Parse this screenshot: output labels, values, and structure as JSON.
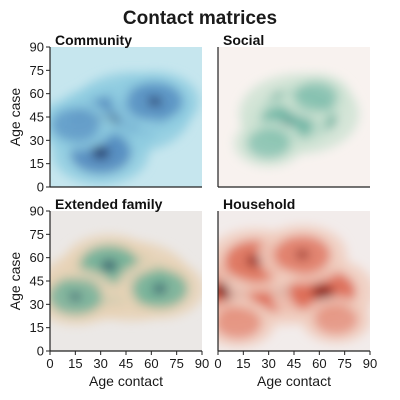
{
  "title": "Contact matrices",
  "chart_data": [
    {
      "type": "heatmap",
      "panel": "Community",
      "xlabel": "",
      "ylabel": "Age case",
      "xlim": [
        0,
        90
      ],
      "ylim": [
        0,
        90
      ],
      "xticks": [
        "0",
        "15",
        "30",
        "45",
        "60",
        "75",
        "90"
      ],
      "yticks": [
        "0",
        "15",
        "30",
        "45",
        "60",
        "75",
        "90"
      ],
      "colors": {
        "background": "#c6e6ee",
        "low": "#8fcde0",
        "mid": "#3e74b4",
        "high": "#141a48"
      },
      "density_peaks": [
        {
          "x": 48,
          "y": 48,
          "weight": 1.0
        },
        {
          "x": 33,
          "y": 42,
          "weight": 0.85
        },
        {
          "x": 30,
          "y": 22,
          "weight": 0.7
        },
        {
          "x": 62,
          "y": 55,
          "weight": 0.6
        },
        {
          "x": 15,
          "y": 40,
          "weight": 0.45
        }
      ]
    },
    {
      "type": "heatmap",
      "panel": "Social",
      "xlabel": "",
      "ylabel": "",
      "xlim": [
        0,
        90
      ],
      "ylim": [
        0,
        90
      ],
      "xticks": [
        "0",
        "15",
        "30",
        "45",
        "60",
        "75",
        "90"
      ],
      "yticks": [
        "0",
        "15",
        "30",
        "45",
        "60",
        "75",
        "90"
      ],
      "colors": {
        "background": "#f8f2ef",
        "low": "#cfe3d3",
        "mid": "#3da08c",
        "high": "#114d57"
      },
      "density_peaks": [
        {
          "x": 48,
          "y": 47,
          "weight": 1.0
        },
        {
          "x": 40,
          "y": 40,
          "weight": 0.55
        },
        {
          "x": 30,
          "y": 28,
          "weight": 0.35
        },
        {
          "x": 58,
          "y": 58,
          "weight": 0.35
        }
      ]
    },
    {
      "type": "heatmap",
      "panel": "Extended family",
      "xlabel": "Age contact",
      "ylabel": "Age case",
      "xlim": [
        0,
        90
      ],
      "ylim": [
        0,
        90
      ],
      "xticks": [
        "0",
        "15",
        "30",
        "45",
        "60",
        "75",
        "90"
      ],
      "yticks": [
        "0",
        "15",
        "30",
        "45",
        "60",
        "75",
        "90"
      ],
      "colors": {
        "background": "#ebe8e6",
        "low": "#e8d2b6",
        "mid": "#3ea38c",
        "high": "#16365b"
      },
      "density_peaks": [
        {
          "x": 48,
          "y": 45,
          "weight": 1.0
        },
        {
          "x": 25,
          "y": 42,
          "weight": 0.8
        },
        {
          "x": 35,
          "y": 55,
          "weight": 0.65
        },
        {
          "x": 65,
          "y": 40,
          "weight": 0.6
        },
        {
          "x": 15,
          "y": 35,
          "weight": 0.55
        }
      ]
    },
    {
      "type": "heatmap",
      "panel": "Household",
      "xlabel": "Age contact",
      "ylabel": "",
      "xlim": [
        0,
        90
      ],
      "ylim": [
        0,
        90
      ],
      "xticks": [
        "0",
        "15",
        "30",
        "45",
        "60",
        "75",
        "90"
      ],
      "yticks": [
        "0",
        "15",
        "30",
        "45",
        "60",
        "75",
        "90"
      ],
      "colors": {
        "background": "#f2eceb",
        "low": "#f0cdbe",
        "mid": "#d9543c",
        "high": "#7a1410"
      },
      "density_peaks": [
        {
          "x": 8,
          "y": 40,
          "weight": 1.0
        },
        {
          "x": 38,
          "y": 40,
          "weight": 0.85
        },
        {
          "x": 62,
          "y": 38,
          "weight": 0.8
        },
        {
          "x": 22,
          "y": 58,
          "weight": 0.7
        },
        {
          "x": 50,
          "y": 62,
          "weight": 0.6
        },
        {
          "x": 12,
          "y": 18,
          "weight": 0.4
        },
        {
          "x": 70,
          "y": 20,
          "weight": 0.35
        }
      ]
    }
  ]
}
